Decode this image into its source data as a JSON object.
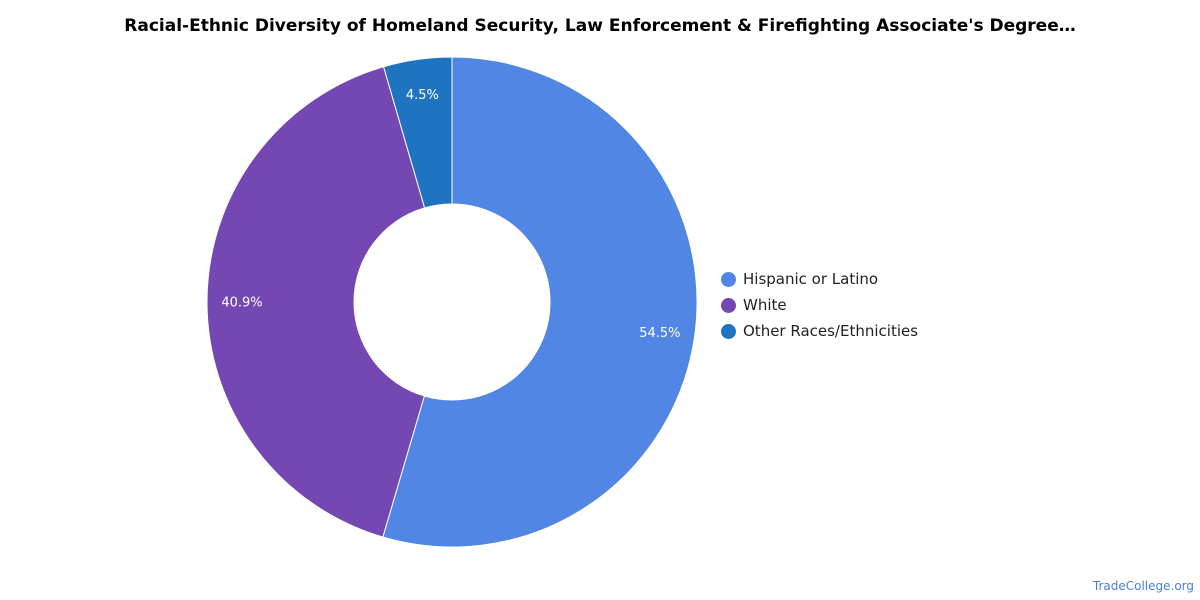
{
  "chart_data": {
    "type": "pie",
    "donut": true,
    "title": "Racial-Ethnic Diversity of Homeland Security, Law Enforcement & Firefighting Associate's Degree…",
    "slices": [
      {
        "label": "Hispanic or Latino",
        "value": 54.5,
        "value_label": "54.5%",
        "color": "#5286e5"
      },
      {
        "label": "White",
        "value": 40.9,
        "value_label": "40.9%",
        "color": "#7447b3"
      },
      {
        "label": "Other Races/Ethnicities",
        "value": 4.5,
        "value_label": "4.5%",
        "color": "#1f74c2"
      }
    ],
    "legend_position": "right"
  },
  "watermark": "TradeCollege.org"
}
